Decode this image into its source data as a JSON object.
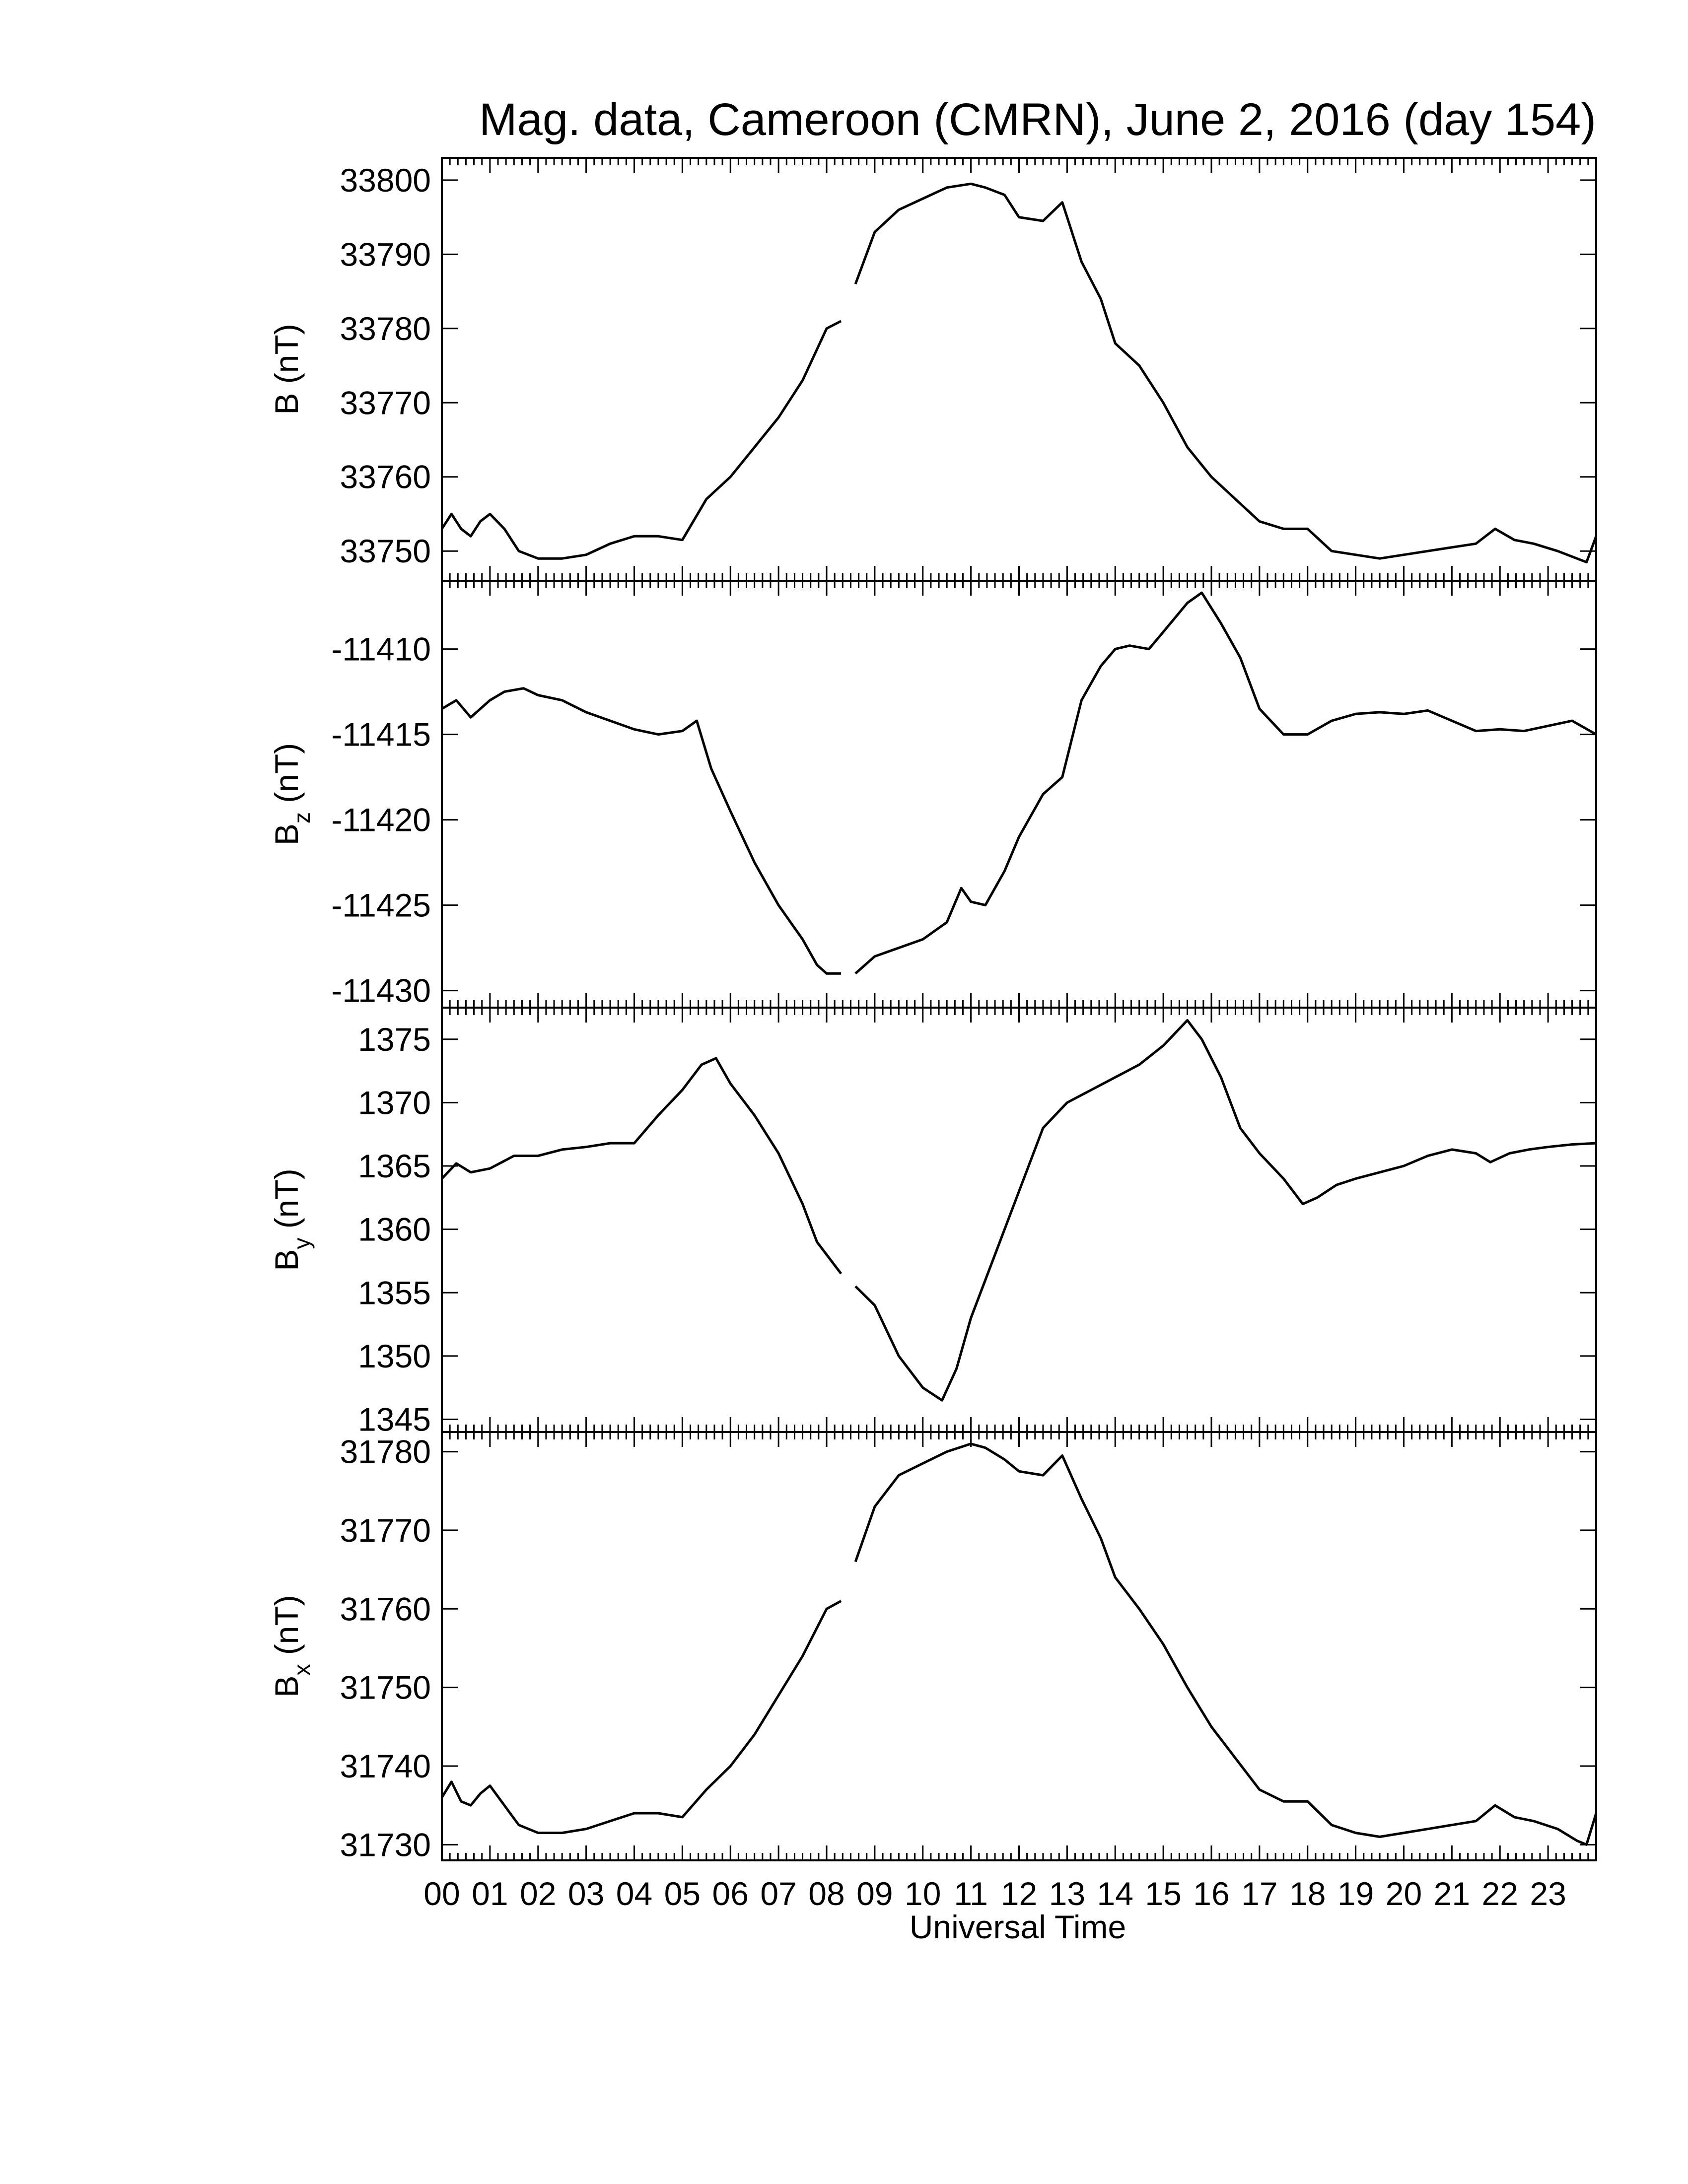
{
  "chart_data": {
    "type": "line",
    "title": "Mag. data, Cameroon (CMRN), June 2, 2016 (day 154)",
    "xlabel": "Universal Time",
    "x_unit": "hour",
    "xlim": [
      0,
      24
    ],
    "x_tick_labels": [
      "00",
      "01",
      "02",
      "03",
      "04",
      "05",
      "06",
      "07",
      "08",
      "09",
      "10",
      "11",
      "12",
      "13",
      "14",
      "15",
      "16",
      "17",
      "18",
      "19",
      "20",
      "21",
      "22",
      "23"
    ],
    "data_gap_hours": [
      8.3,
      8.6
    ],
    "panels": [
      {
        "id": "B",
        "ylabel_main": "B",
        "ylabel_sub": "",
        "ylabel_unit": "(nT)",
        "ylim": [
          33746,
          33803
        ],
        "yticks": [
          33750,
          33760,
          33770,
          33780,
          33790,
          33800
        ],
        "x": [
          0,
          0.2,
          0.4,
          0.6,
          0.8,
          1.0,
          1.3,
          1.6,
          2.0,
          2.5,
          3.0,
          3.5,
          4.0,
          4.5,
          5.0,
          5.5,
          6.0,
          6.5,
          7.0,
          7.5,
          8.0,
          8.3,
          8.6,
          9.0,
          9.5,
          10.0,
          10.5,
          11.0,
          11.3,
          11.7,
          12.0,
          12.5,
          12.9,
          13.3,
          13.7,
          14.0,
          14.5,
          15.0,
          15.5,
          16.0,
          16.5,
          17.0,
          17.5,
          18.0,
          18.5,
          19.0,
          19.5,
          20.0,
          20.5,
          21.0,
          21.5,
          21.9,
          22.3,
          22.7,
          23.2,
          23.6,
          23.8,
          24.0
        ],
        "y": [
          33753,
          33755,
          33753,
          33752,
          33754,
          33755,
          33753,
          33750,
          33749,
          33749,
          33749.5,
          33751,
          33752,
          33752,
          33751.5,
          33757,
          33760,
          33764,
          33768,
          33773,
          33780,
          33781,
          33786,
          33793,
          33796,
          33797.5,
          33799,
          33799.5,
          33799,
          33798,
          33795,
          33794.5,
          33797,
          33789,
          33784,
          33778,
          33775,
          33770,
          33764,
          33760,
          33757,
          33754,
          33753,
          33753,
          33750,
          33749.5,
          33749,
          33749.5,
          33750,
          33750.5,
          33751,
          33753,
          33751.5,
          33751,
          33750,
          33749,
          33748.5,
          33752
        ]
      },
      {
        "id": "Bz",
        "ylabel_main": "B",
        "ylabel_sub": "z",
        "ylabel_unit": "(nT)",
        "ylim": [
          -11431,
          -11406
        ],
        "yticks": [
          -11430,
          -11425,
          -11420,
          -11415,
          -11410
        ],
        "x": [
          0,
          0.3,
          0.6,
          1.0,
          1.3,
          1.7,
          2.0,
          2.5,
          3.0,
          3.5,
          4.0,
          4.5,
          5.0,
          5.3,
          5.6,
          6.0,
          6.5,
          7.0,
          7.5,
          7.8,
          8.0,
          8.3,
          8.6,
          9.0,
          9.5,
          10.0,
          10.5,
          10.8,
          11.0,
          11.3,
          11.7,
          12.0,
          12.5,
          12.9,
          13.3,
          13.7,
          14.0,
          14.3,
          14.7,
          15.0,
          15.5,
          15.8,
          16.2,
          16.6,
          17.0,
          17.5,
          18.0,
          18.5,
          19.0,
          19.5,
          20.0,
          20.5,
          21.0,
          21.5,
          22.0,
          22.5,
          23.0,
          23.5,
          24.0
        ],
        "y": [
          -11413.5,
          -11413,
          -11414,
          -11413,
          -11412.5,
          -11412.3,
          -11412.7,
          -11413,
          -11413.7,
          -11414.2,
          -11414.7,
          -11415,
          -11414.8,
          -11414.2,
          -11417,
          -11419.5,
          -11422.5,
          -11425,
          -11427,
          -11428.5,
          -11429,
          -11429,
          -11429,
          -11428,
          -11427.5,
          -11427,
          -11426,
          -11424,
          -11424.8,
          -11425,
          -11423,
          -11421,
          -11418.5,
          -11417.5,
          -11413,
          -11411,
          -11410,
          -11409.8,
          -11410,
          -11409,
          -11407.3,
          -11406.7,
          -11408.5,
          -11410.5,
          -11413.5,
          -11415,
          -11415,
          -11414.2,
          -11413.8,
          -11413.7,
          -11413.8,
          -11413.6,
          -11414.2,
          -11414.8,
          -11414.7,
          -11414.8,
          -11414.5,
          -11414.2,
          -11415
        ]
      },
      {
        "id": "By",
        "ylabel_main": "B",
        "ylabel_sub": "y",
        "ylabel_unit": "(nT)",
        "ylim": [
          1344,
          1377.5
        ],
        "yticks": [
          1345,
          1350,
          1355,
          1360,
          1365,
          1370,
          1375
        ],
        "x": [
          0,
          0.3,
          0.6,
          1.0,
          1.5,
          2.0,
          2.5,
          3.0,
          3.5,
          4.0,
          4.5,
          5.0,
          5.4,
          5.7,
          6.0,
          6.5,
          7.0,
          7.5,
          7.8,
          8.0,
          8.3,
          8.6,
          9.0,
          9.5,
          10.0,
          10.4,
          10.7,
          11.0,
          11.5,
          12.0,
          12.5,
          13.0,
          13.5,
          14.0,
          14.5,
          15.0,
          15.5,
          15.8,
          16.2,
          16.6,
          17.0,
          17.5,
          17.9,
          18.2,
          18.6,
          19.0,
          19.5,
          20.0,
          20.5,
          21.0,
          21.5,
          21.8,
          22.2,
          22.6,
          23.0,
          23.5,
          24.0
        ],
        "y": [
          1364,
          1365.2,
          1364.5,
          1364.8,
          1365.8,
          1365.8,
          1366.3,
          1366.5,
          1366.8,
          1366.8,
          1369,
          1371,
          1373,
          1373.5,
          1371.5,
          1369,
          1366,
          1362,
          1359,
          1358,
          1356.5,
          1355.5,
          1354,
          1350,
          1347.5,
          1346.5,
          1349,
          1353,
          1358,
          1363,
          1368,
          1370,
          1371,
          1372,
          1373,
          1374.5,
          1376.5,
          1375,
          1372,
          1368,
          1366,
          1364,
          1362,
          1362.5,
          1363.5,
          1364,
          1364.5,
          1365,
          1365.8,
          1366.3,
          1366,
          1365.3,
          1366,
          1366.3,
          1366.5,
          1366.7,
          1366.8
        ]
      },
      {
        "id": "Bx",
        "ylabel_main": "B",
        "ylabel_sub": "x",
        "ylabel_unit": "(nT)",
        "ylim": [
          31728,
          31782.5
        ],
        "yticks": [
          31730,
          31740,
          31750,
          31760,
          31770,
          31780
        ],
        "x": [
          0,
          0.2,
          0.4,
          0.6,
          0.8,
          1.0,
          1.3,
          1.6,
          2.0,
          2.5,
          3.0,
          3.5,
          4.0,
          4.5,
          5.0,
          5.5,
          6.0,
          6.5,
          7.0,
          7.5,
          8.0,
          8.3,
          8.6,
          9.0,
          9.5,
          10.0,
          10.5,
          11.0,
          11.3,
          11.7,
          12.0,
          12.5,
          12.9,
          13.3,
          13.7,
          14.0,
          14.5,
          15.0,
          15.5,
          16.0,
          16.5,
          17.0,
          17.5,
          18.0,
          18.5,
          19.0,
          19.5,
          20.0,
          20.5,
          21.0,
          21.5,
          21.9,
          22.3,
          22.7,
          23.2,
          23.6,
          23.8,
          24.0
        ],
        "y": [
          31736,
          31738,
          31735.5,
          31735,
          31736.5,
          31737.5,
          31735,
          31732.5,
          31731.5,
          31731.5,
          31732,
          31733,
          31734,
          31734,
          31733.5,
          31737,
          31740,
          31744,
          31749,
          31754,
          31760,
          31761,
          31766,
          31773,
          31777,
          31778.5,
          31780,
          31781,
          31780.5,
          31779,
          31777.5,
          31777,
          31779.5,
          31774,
          31769,
          31764,
          31760,
          31755.5,
          31750,
          31745,
          31741,
          31737,
          31735.5,
          31735.5,
          31732.5,
          31731.5,
          31731,
          31731.5,
          31732,
          31732.5,
          31733,
          31735,
          31733.5,
          31733,
          31732,
          31730.5,
          31730,
          31734
        ]
      }
    ]
  }
}
